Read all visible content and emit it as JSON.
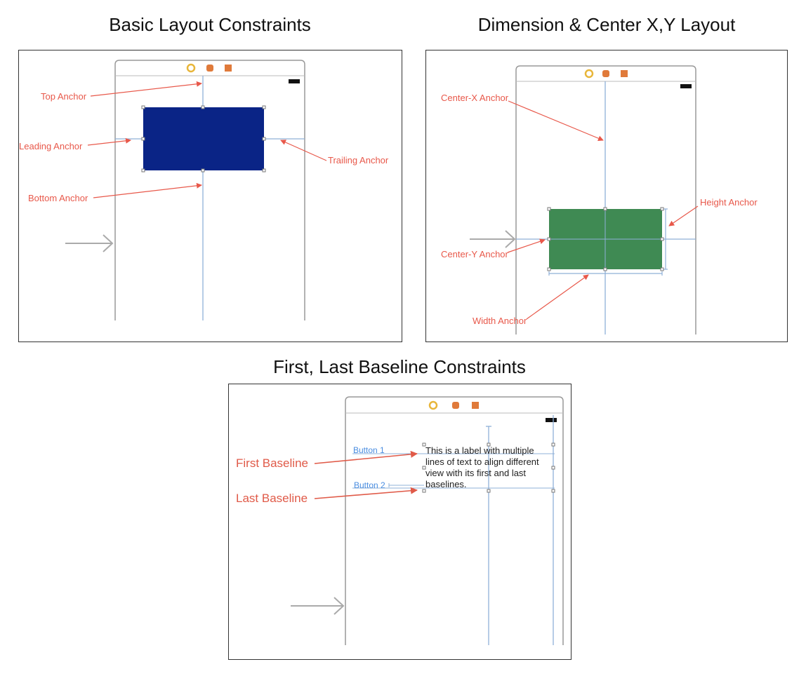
{
  "titles": {
    "basic": "Basic Layout Constraints",
    "dimension": "Dimension & Center X,Y Layout",
    "baseline": "First, Last Baseline Constraints"
  },
  "basic": {
    "top_anchor": "Top Anchor",
    "leading_anchor": "Leading Anchor",
    "trailing_anchor": "Trailing Anchor",
    "bottom_anchor": "Bottom Anchor"
  },
  "dimension": {
    "center_x_anchor": "Center-X Anchor",
    "height_anchor": "Height Anchor",
    "center_y_anchor": "Center-Y Anchor",
    "width_anchor": "Width Anchor"
  },
  "baseline": {
    "first_baseline": "First Baseline",
    "last_baseline": "Last Baseline",
    "button1": "Button 1",
    "button2": "Button 2",
    "label_line1": "This is a label with multiple",
    "label_line2": "lines of text to align different",
    "label_line3": "view with its first and last",
    "label_line4": "baselines."
  },
  "colors": {
    "annotation": "#e8584a",
    "blue_view": "#0a2486",
    "green_view": "#3f8a53",
    "constraint": "#8fb0d8",
    "button_text": "#4a8de0",
    "toolbar_yellow": "#e8b63a",
    "toolbar_orange": "#e07a3a"
  }
}
